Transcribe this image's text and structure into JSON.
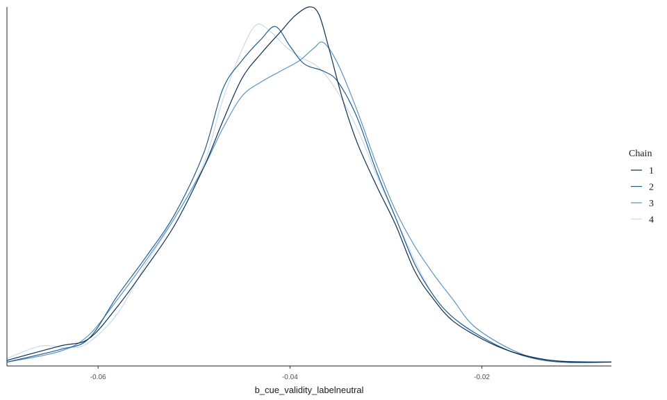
{
  "chart_data": {
    "type": "line",
    "xlabel": "b_cue_validity_labelneutral",
    "ylabel": "",
    "xlim": [
      -0.0695,
      -0.0065
    ],
    "ylim": [
      0,
      1
    ],
    "x_ticks": [
      -0.06,
      -0.04,
      -0.02
    ],
    "x_tick_labels": [
      "-0.06",
      "-0.04",
      "-0.02"
    ],
    "y_axis_ticks": false,
    "grid": false,
    "legend": {
      "title": "Chain",
      "position": "right"
    },
    "series": [
      {
        "name": "1",
        "color": "#0b2d4f",
        "points": [
          [
            -0.0695,
            0.01
          ],
          [
            -0.064,
            0.05
          ],
          [
            -0.061,
            0.07
          ],
          [
            -0.058,
            0.16
          ],
          [
            -0.055,
            0.27
          ],
          [
            -0.052,
            0.39
          ],
          [
            -0.049,
            0.55
          ],
          [
            -0.047,
            0.68
          ],
          [
            -0.045,
            0.8
          ],
          [
            -0.043,
            0.87
          ],
          [
            -0.041,
            0.93
          ],
          [
            -0.0395,
            0.975
          ],
          [
            -0.038,
            1.0
          ],
          [
            -0.037,
            0.98
          ],
          [
            -0.036,
            0.89
          ],
          [
            -0.0345,
            0.74
          ],
          [
            -0.033,
            0.62
          ],
          [
            -0.031,
            0.5
          ],
          [
            -0.029,
            0.39
          ],
          [
            -0.027,
            0.26
          ],
          [
            -0.025,
            0.18
          ],
          [
            -0.023,
            0.12
          ],
          [
            -0.02,
            0.07
          ],
          [
            -0.017,
            0.035
          ],
          [
            -0.014,
            0.015
          ],
          [
            -0.011,
            0.006
          ],
          [
            -0.0065,
            0.005
          ]
        ]
      },
      {
        "name": "2",
        "color": "#1f5a8a",
        "points": [
          [
            -0.0695,
            0.005
          ],
          [
            -0.064,
            0.04
          ],
          [
            -0.061,
            0.07
          ],
          [
            -0.058,
            0.19
          ],
          [
            -0.055,
            0.3
          ],
          [
            -0.052,
            0.42
          ],
          [
            -0.049,
            0.59
          ],
          [
            -0.047,
            0.77
          ],
          [
            -0.045,
            0.85
          ],
          [
            -0.043,
            0.91
          ],
          [
            -0.0415,
            0.945
          ],
          [
            -0.04,
            0.89
          ],
          [
            -0.0385,
            0.84
          ],
          [
            -0.0365,
            0.82
          ],
          [
            -0.035,
            0.79
          ],
          [
            -0.033,
            0.69
          ],
          [
            -0.031,
            0.54
          ],
          [
            -0.029,
            0.41
          ],
          [
            -0.027,
            0.28
          ],
          [
            -0.025,
            0.19
          ],
          [
            -0.023,
            0.13
          ],
          [
            -0.02,
            0.075
          ],
          [
            -0.017,
            0.035
          ],
          [
            -0.014,
            0.012
          ],
          [
            -0.011,
            0.004
          ],
          [
            -0.0065,
            0.005
          ]
        ]
      },
      {
        "name": "3",
        "color": "#5b93c7",
        "points": [
          [
            -0.0695,
            0.005
          ],
          [
            -0.064,
            0.035
          ],
          [
            -0.061,
            0.08
          ],
          [
            -0.058,
            0.18
          ],
          [
            -0.055,
            0.29
          ],
          [
            -0.052,
            0.41
          ],
          [
            -0.049,
            0.55
          ],
          [
            -0.047,
            0.66
          ],
          [
            -0.045,
            0.75
          ],
          [
            -0.043,
            0.79
          ],
          [
            -0.041,
            0.82
          ],
          [
            -0.039,
            0.85
          ],
          [
            -0.0375,
            0.885
          ],
          [
            -0.0365,
            0.9
          ],
          [
            -0.035,
            0.84
          ],
          [
            -0.033,
            0.71
          ],
          [
            -0.031,
            0.56
          ],
          [
            -0.029,
            0.43
          ],
          [
            -0.027,
            0.33
          ],
          [
            -0.025,
            0.25
          ],
          [
            -0.023,
            0.18
          ],
          [
            -0.021,
            0.11
          ],
          [
            -0.018,
            0.055
          ],
          [
            -0.015,
            0.02
          ],
          [
            -0.012,
            0.008
          ],
          [
            -0.0065,
            0.005
          ]
        ]
      },
      {
        "name": "4",
        "color": "#c6dbef",
        "points": [
          [
            -0.0695,
            0.015
          ],
          [
            -0.066,
            0.05
          ],
          [
            -0.063,
            0.045
          ],
          [
            -0.061,
            0.06
          ],
          [
            -0.058,
            0.14
          ],
          [
            -0.055,
            0.28
          ],
          [
            -0.052,
            0.41
          ],
          [
            -0.049,
            0.56
          ],
          [
            -0.047,
            0.74
          ],
          [
            -0.045,
            0.88
          ],
          [
            -0.0435,
            0.95
          ],
          [
            -0.042,
            0.93
          ],
          [
            -0.0405,
            0.89
          ],
          [
            -0.039,
            0.86
          ],
          [
            -0.037,
            0.83
          ],
          [
            -0.035,
            0.76
          ],
          [
            -0.033,
            0.66
          ],
          [
            -0.031,
            0.53
          ],
          [
            -0.029,
            0.41
          ],
          [
            -0.027,
            0.29
          ],
          [
            -0.025,
            0.19
          ],
          [
            -0.023,
            0.13
          ],
          [
            -0.02,
            0.07
          ],
          [
            -0.017,
            0.035
          ],
          [
            -0.014,
            0.014
          ],
          [
            -0.011,
            0.006
          ],
          [
            -0.0065,
            0.005
          ]
        ]
      }
    ]
  }
}
